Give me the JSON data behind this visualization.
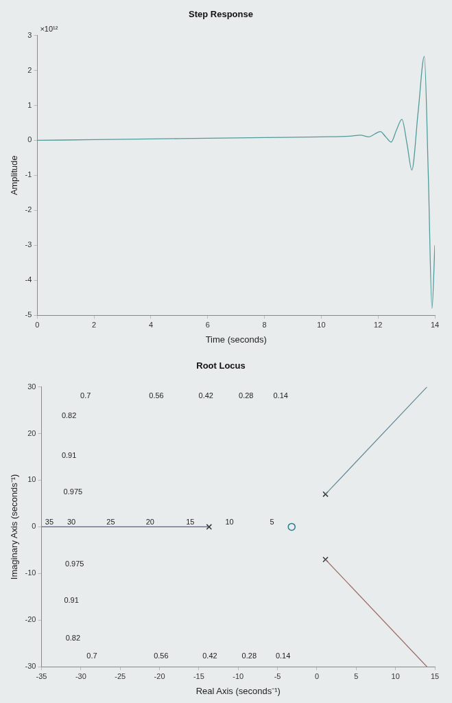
{
  "chart_data": [
    {
      "type": "line",
      "title": "Step Response",
      "xlabel": "Time (seconds)",
      "ylabel": "Amplitude",
      "xlim": [
        0,
        14
      ],
      "xticks": [
        0,
        2,
        4,
        6,
        8,
        10,
        12,
        14
      ],
      "ylim": [
        -5,
        3
      ],
      "yticks": [
        -5,
        -4,
        -3,
        -2,
        -1,
        0,
        1,
        2,
        3
      ],
      "grid": false,
      "legend": false,
      "marker": "none",
      "annotations": [
        "×10¹²"
      ],
      "series": [
        {
          "color": "#4f9a9a",
          "x": [
            0,
            2,
            4,
            6,
            8,
            10,
            11,
            11.38,
            11.68,
            11.88,
            12.08,
            12.27,
            12.46,
            12.65,
            12.84,
            13.02,
            13.19,
            13.41,
            13.63,
            13.77,
            13.9,
            14.0
          ],
          "values": [
            0,
            0.02,
            0.04,
            0.06,
            0.08,
            0.1,
            0.12,
            0.15,
            0.1,
            0.18,
            0.25,
            0.1,
            -0.05,
            0.3,
            0.6,
            -0.1,
            -0.85,
            0.8,
            2.4,
            -1,
            -4.8,
            -3
          ]
        }
      ]
    },
    {
      "type": "line",
      "title": "Root Locus",
      "xlabel": "Real Axis (seconds⁻¹)",
      "ylabel": "Imaginary Axis (seconds⁻¹)",
      "xlim": [
        -35,
        15
      ],
      "xticks": [
        -35,
        -30,
        -25,
        -20,
        -15,
        -10,
        -5,
        0,
        5,
        10,
        15
      ],
      "ylim": [
        -30,
        30
      ],
      "yticks": [
        -30,
        -20,
        -10,
        0,
        10,
        20,
        30
      ],
      "grid": false,
      "legend": false,
      "annotations": [
        "0.7",
        "0.56",
        "0.42",
        "0.28",
        "0.14",
        "0.82",
        "0.91",
        "0.975",
        "0.975",
        "0.91",
        "0.82",
        "0.7",
        "0.56",
        "0.42",
        "0.28",
        "0.14",
        "35",
        "30",
        "25",
        "20",
        "15",
        "10",
        "5"
      ],
      "series": [
        {
          "color": "#5a5aa8",
          "marker": "none",
          "x": [
            -35,
            -13.7
          ],
          "values": [
            0,
            0
          ]
        },
        {
          "color": "#6a8a96",
          "marker": "none",
          "x": [
            1.1,
            14
          ],
          "values": [
            7,
            30
          ]
        },
        {
          "color": "#a07070",
          "marker": "none",
          "x": [
            1.1,
            14
          ],
          "values": [
            -7,
            -30
          ]
        },
        {
          "type": "scatter",
          "color": "#333333",
          "marker": "cross",
          "x": [
            -13.7,
            1.1,
            1.1
          ],
          "values": [
            0,
            7,
            -7
          ]
        },
        {
          "type": "scatter",
          "color": "#2a7a8a",
          "marker": "circle",
          "x": [
            -3.2
          ],
          "values": [
            0
          ]
        }
      ]
    }
  ]
}
